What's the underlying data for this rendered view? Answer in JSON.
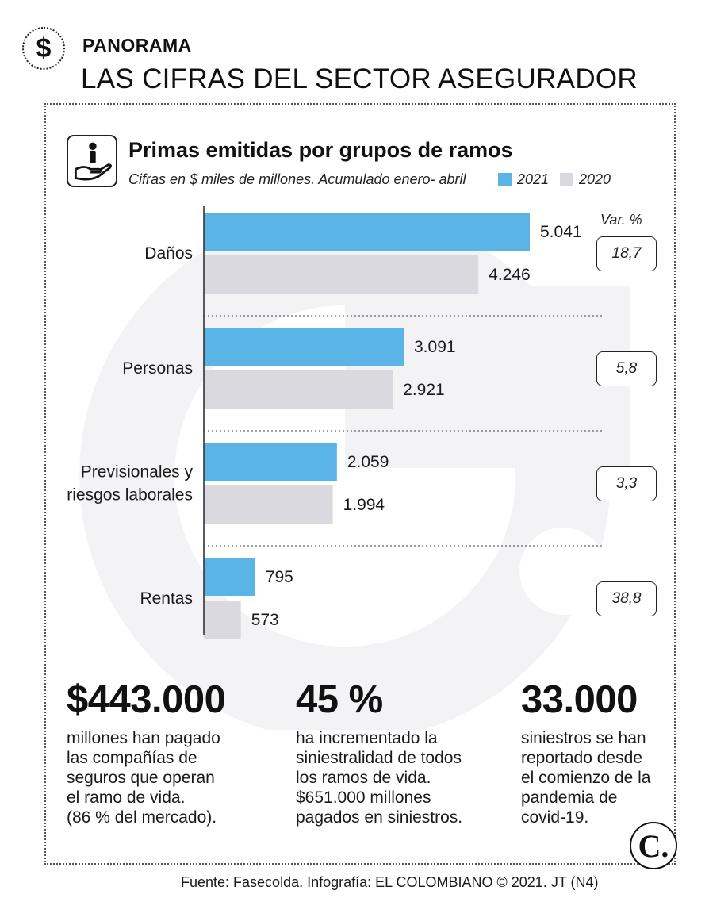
{
  "header": {
    "kicker": "PANORAMA",
    "headline": "LAS CIFRAS DEL SECTOR ASEGURADOR",
    "badge_symbol": "$"
  },
  "chart_data": {
    "type": "bar",
    "orientation": "horizontal",
    "title": "Primas emitidas por grupos de ramos",
    "subtitle": "Cifras en $ miles de millones. Acumulado enero- abril",
    "categories": [
      "Daños",
      "Personas",
      "Previsionales y riesgos laborales",
      "Rentas"
    ],
    "category_lines": [
      [
        "Daños"
      ],
      [
        "Personas"
      ],
      [
        "Previsionales y",
        "riesgos laborales"
      ],
      [
        "Rentas"
      ]
    ],
    "series": [
      {
        "name": "2021",
        "color": "#5ab4e5",
        "values": [
          5041,
          3091,
          2059,
          795
        ],
        "labels": [
          "5.041",
          "3.091",
          "2.059",
          "795"
        ]
      },
      {
        "name": "2020",
        "color": "#d9d9df",
        "values": [
          4246,
          2921,
          1994,
          573
        ],
        "labels": [
          "4.246",
          "2.921",
          "1.994",
          "573"
        ]
      }
    ],
    "variation_label": "Var.  %",
    "variation": [
      "18,7",
      "5,8",
      "3,3",
      "38,8"
    ],
    "xlim": [
      0,
      5041
    ],
    "legend_position": "top",
    "grid": false
  },
  "stats": [
    {
      "value": "$443.000",
      "lines": [
        "millones han pagado",
        "las compañías de",
        "seguros que operan",
        "el ramo de vida.",
        "(86 % del mercado)."
      ]
    },
    {
      "value": "45 %",
      "lines": [
        "ha incrementado la",
        "siniestralidad de todos",
        "los ramos de vida.",
        "$651.000 millones",
        "pagados en siniestros."
      ]
    },
    {
      "value": "33.000",
      "lines": [
        "siniestros se han",
        "reportado desde",
        "el comienzo de la",
        "pandemia de",
        "covid-19."
      ]
    }
  ],
  "logo_letter": "C.",
  "source": "Fuente: Fasecolda. Infografía: EL COLOMBIANO © 2021. JT (N4)",
  "icons": {
    "badge": "dollar-icon",
    "chart": "hand-holding-person-icon",
    "logo": "el-colombiano-logo"
  }
}
